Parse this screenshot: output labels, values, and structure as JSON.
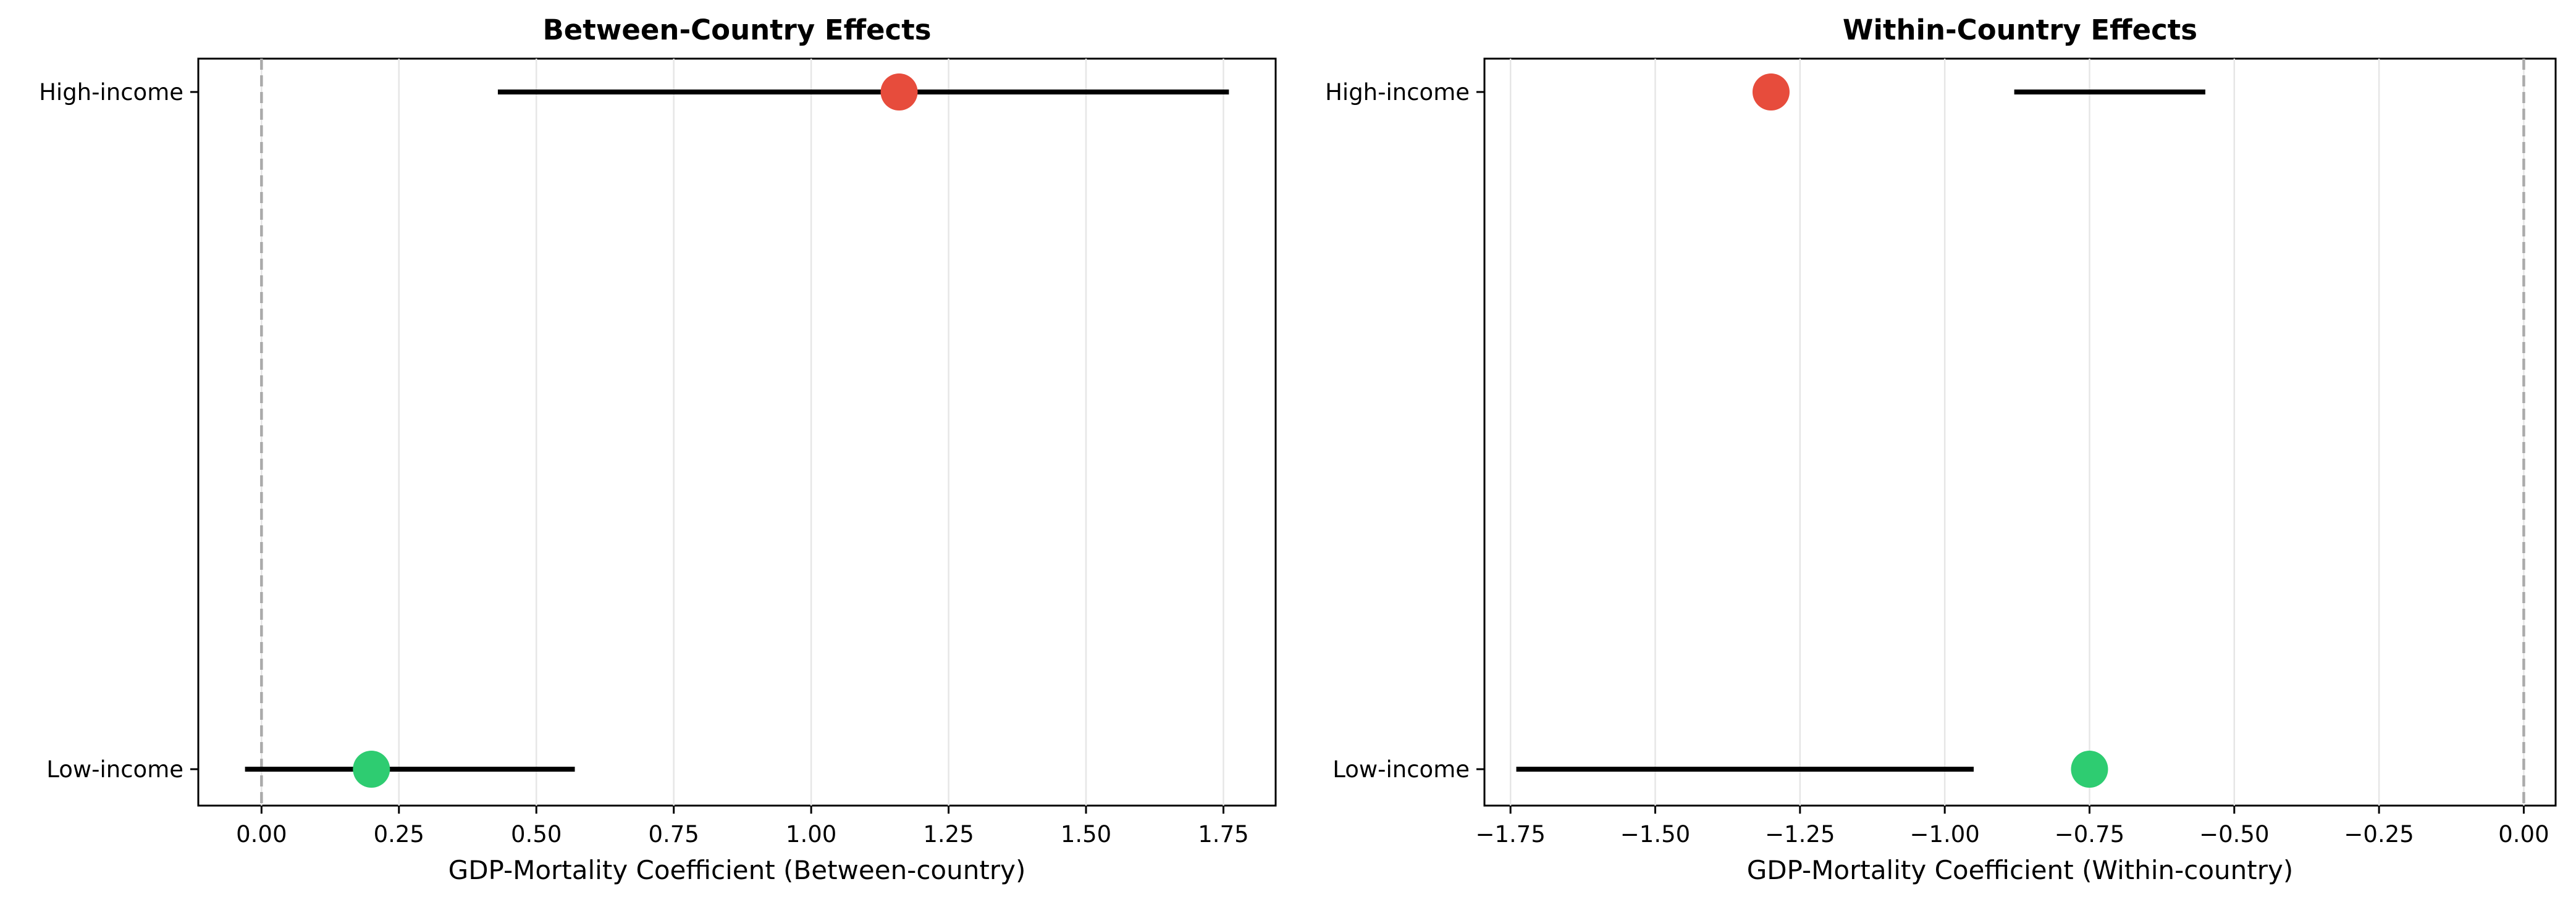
{
  "chart_data": [
    {
      "type": "forest",
      "title": "Between-Country Effects",
      "xlabel": "GDP-Mortality Coefficient (Between-country)",
      "ylabel": "",
      "xlim": [
        -0.115,
        1.845
      ],
      "xticks": [
        "0.00",
        "0.25",
        "0.50",
        "0.75",
        "1.00",
        "1.25",
        "1.50",
        "1.75"
      ],
      "xtick_values": [
        0,
        0.25,
        0.5,
        0.75,
        1.0,
        1.25,
        1.5,
        1.75
      ],
      "reference_line": 0,
      "grid": "x",
      "categories": [
        "High-income",
        "Low-income"
      ],
      "points": [
        {
          "group": "High-income",
          "estimate": 1.16,
          "ci_low": 0.43,
          "ci_high": 1.76,
          "color": "#e74c3c"
        },
        {
          "group": "Low-income",
          "estimate": 0.2,
          "ci_low": -0.03,
          "ci_high": 0.57,
          "color": "#2ecc71"
        }
      ]
    },
    {
      "type": "forest",
      "title": "Within-Country Effects",
      "xlabel": "GDP-Mortality Coefficient (Within-country)",
      "ylabel": "",
      "xlim": [
        -1.795,
        0.055
      ],
      "xticks": [
        "−1.75",
        "−1.50",
        "−1.25",
        "−1.00",
        "−0.75",
        "−0.50",
        "−0.25",
        "0.00"
      ],
      "xtick_values": [
        -1.75,
        -1.5,
        -1.25,
        -1.0,
        -0.75,
        -0.5,
        -0.25,
        0
      ],
      "reference_line": 0,
      "grid": "x",
      "categories": [
        "High-income",
        "Low-income"
      ],
      "points": [
        {
          "group": "High-income",
          "estimate": -1.3,
          "ci_low": -0.88,
          "ci_high": -0.55,
          "color": "#e74c3c"
        },
        {
          "group": "Low-income",
          "estimate": -0.75,
          "ci_low": -1.74,
          "ci_high": -0.95,
          "color": "#2ecc71"
        }
      ]
    }
  ]
}
